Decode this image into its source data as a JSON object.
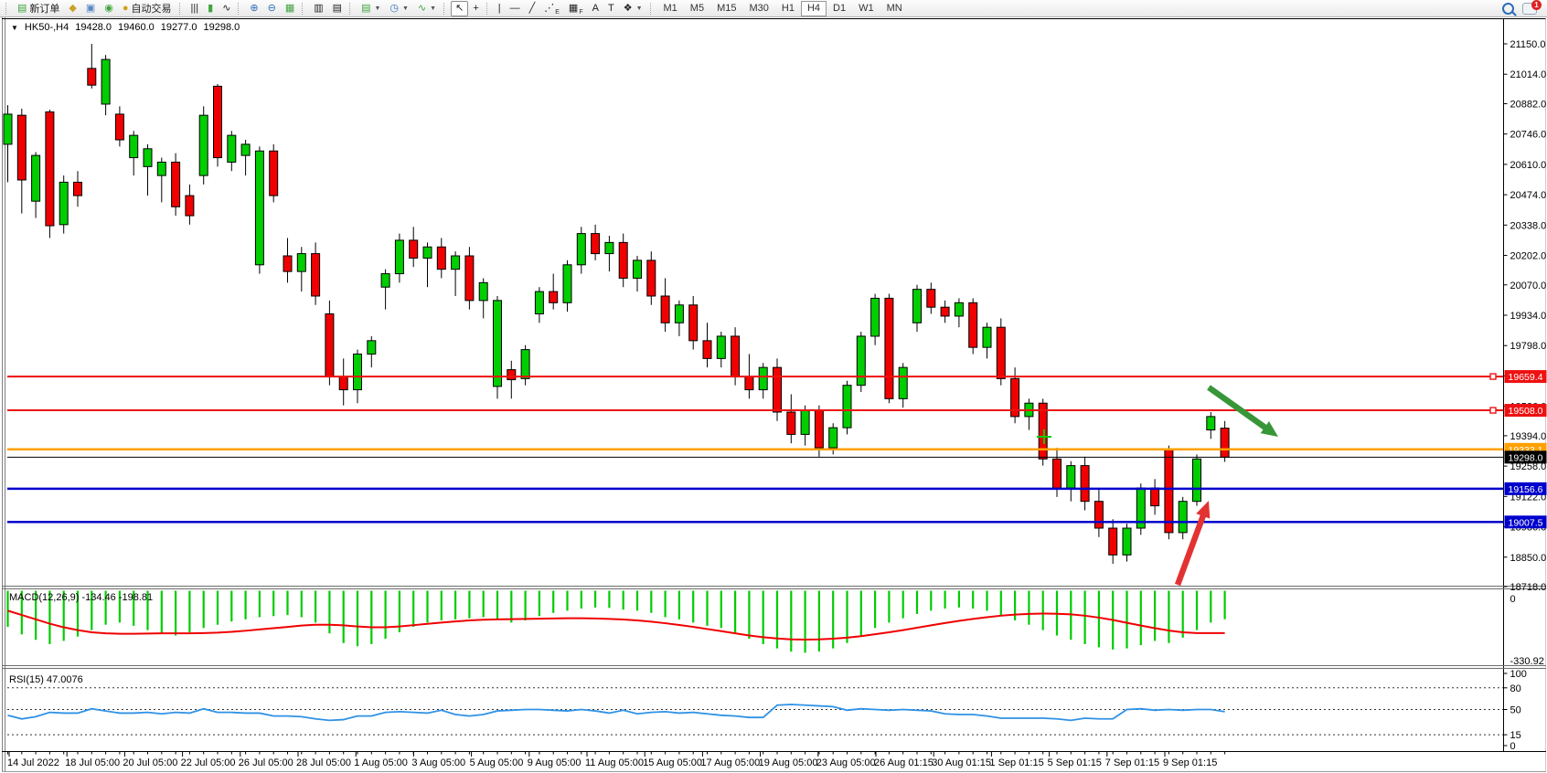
{
  "toolbar": {
    "groups": [
      {
        "items": [
          {
            "name": "new-order-button",
            "glyph": "▤",
            "glyph_color": "#3fa43f",
            "label": "新订单"
          },
          {
            "name": "market-watch-button",
            "glyph": "◆",
            "glyph_color": "#c9a227"
          },
          {
            "name": "data-window-button",
            "glyph": "▣",
            "glyph_color": "#5b87c5"
          },
          {
            "name": "signals-button",
            "glyph": "◉",
            "glyph_color": "#3fa43f"
          },
          {
            "name": "autotrading-button",
            "glyph": "●",
            "glyph_color": "#d4a017",
            "label": "自动交易"
          }
        ]
      },
      {
        "items": [
          {
            "name": "bar-chart-button",
            "glyph": "|||"
          },
          {
            "name": "candlestick-chart-button",
            "glyph": "▮",
            "glyph_color": "#3fa43f"
          },
          {
            "name": "line-chart-button",
            "glyph": "∿"
          }
        ]
      },
      {
        "items": [
          {
            "name": "zoom-in-button",
            "glyph": "⊕",
            "glyph_color": "#2b6cb8"
          },
          {
            "name": "zoom-out-button",
            "glyph": "⊖",
            "glyph_color": "#2b6cb8"
          },
          {
            "name": "tile-windows-button",
            "glyph": "▦",
            "glyph_color": "#3fa43f"
          }
        ]
      },
      {
        "items": [
          {
            "name": "auto-arrange-button",
            "glyph": "▥"
          },
          {
            "name": "track-chart-button",
            "glyph": "▤"
          }
        ]
      },
      {
        "items": [
          {
            "name": "new-chart-dropdown",
            "glyph": "▤",
            "glyph_color": "#3fa43f",
            "dropdown": true
          },
          {
            "name": "periods-dropdown",
            "glyph": "◷",
            "glyph_color": "#2b6cb8",
            "dropdown": true
          },
          {
            "name": "indicators-dropdown",
            "glyph": "∿",
            "glyph_color": "#3fa43f",
            "dropdown": true
          }
        ]
      },
      {
        "items": [
          {
            "name": "cursor-button",
            "glyph": "↖",
            "pressed": true
          },
          {
            "name": "crosshair-button",
            "glyph": "+"
          }
        ]
      },
      {
        "items": [
          {
            "name": "vertical-line-button",
            "glyph": "|"
          },
          {
            "name": "horizontal-line-button",
            "glyph": "—"
          },
          {
            "name": "trendline-button",
            "glyph": "╱"
          },
          {
            "name": "fibonacci-button",
            "glyph": "⋰",
            "sub": "E"
          },
          {
            "name": "grid-button",
            "glyph": "▦",
            "sub": "F"
          },
          {
            "name": "text-button",
            "glyph": "A"
          },
          {
            "name": "text-label-button",
            "glyph": "T"
          },
          {
            "name": "shapes-dropdown",
            "glyph": "❖",
            "dropdown": true
          }
        ]
      }
    ],
    "timeframes": {
      "items": [
        "M1",
        "M5",
        "M15",
        "M30",
        "H1",
        "H4",
        "D1",
        "W1",
        "MN"
      ],
      "active": "H4"
    },
    "right": {
      "badge": "1"
    }
  },
  "chart_header": {
    "dropdown_glyph": "▼",
    "symbol_period": "HK50-,H4",
    "open": "19428.0",
    "high": "19460.0",
    "low": "19277.0",
    "close": "19298.0"
  },
  "colors": {
    "bull": "#00ce00",
    "bear": "#f00000",
    "candle_border": "#000000",
    "macd_histogram": "#00cc00",
    "macd_signal": "#f00000",
    "rsi_line": "#2f92e5",
    "line_red": "#ee1111",
    "line_orange": "#ffa000",
    "line_blue": "#0000cc",
    "line_black": "#000000"
  },
  "chart_data": {
    "type": "candlestick",
    "symbol": "HK50-",
    "timeframe": "H4",
    "current_bar": {
      "open": 19428.0,
      "high": 19460.0,
      "low": 19277.0,
      "close": 19298.0
    },
    "y_ticks": [
      21150.0,
      21014.0,
      20882.0,
      20746.0,
      20610.0,
      20474.0,
      20338.0,
      20202.0,
      20070.0,
      19934.0,
      19798.0,
      19662.0,
      19526.0,
      19394.0,
      19258.0,
      19122.0,
      18986.0,
      18850.0,
      18718.0
    ],
    "x_labels": [
      "14 Jul 2022",
      "18 Jul 05:00",
      "20 Jul 05:00",
      "22 Jul 05:00",
      "26 Jul 05:00",
      "28 Jul 05:00",
      "1 Aug 05:00",
      "3 Aug 05:00",
      "5 Aug 05:00",
      "9 Aug 05:00",
      "11 Aug 05:00",
      "15 Aug 05:00",
      "17 Aug 05:00",
      "19 Aug 05:00",
      "23 Aug 05:00",
      "26 Aug 01:15",
      "30 Aug 01:15",
      "1 Sep 01:15",
      "5 Sep 01:15",
      "7 Sep 01:15",
      "9 Sep 01:15"
    ],
    "horizontal_lines": [
      {
        "price": 19659.4,
        "label": "19659.4",
        "color": "#ee1111",
        "width": 2,
        "marker": true
      },
      {
        "price": 19508.0,
        "label": "19508.0",
        "color": "#ee1111",
        "width": 2,
        "marker": true
      },
      {
        "price": 19333.1,
        "label": "19333.1",
        "color": "#ffa000",
        "width": 2.5,
        "marker": false
      },
      {
        "price": 19298.0,
        "label": "19298.0",
        "color": "#000000",
        "width": 1,
        "marker": false
      },
      {
        "price": 19156.6,
        "label": "19156.6",
        "color": "#0000cc",
        "width": 2.5,
        "marker": false
      },
      {
        "price": 19007.5,
        "label": "19007.5",
        "color": "#0000cc",
        "width": 2.5,
        "marker": false
      }
    ],
    "candles": [
      [
        20700,
        20875,
        20530,
        20835
      ],
      [
        20830,
        20860,
        20390,
        20540
      ],
      [
        20445,
        20665,
        20370,
        20650
      ],
      [
        20845,
        20855,
        20280,
        20335
      ],
      [
        20340,
        20560,
        20300,
        20530
      ],
      [
        20530,
        20580,
        20420,
        20470
      ],
      [
        21040,
        21150,
        20950,
        20965
      ],
      [
        20880,
        21100,
        20830,
        21080
      ],
      [
        20835,
        20870,
        20690,
        20720
      ],
      [
        20640,
        20760,
        20560,
        20740
      ],
      [
        20600,
        20700,
        20470,
        20680
      ],
      [
        20560,
        20640,
        20440,
        20620
      ],
      [
        20620,
        20660,
        20380,
        20420
      ],
      [
        20470,
        20520,
        20340,
        20380
      ],
      [
        20560,
        20870,
        20520,
        20830
      ],
      [
        20960,
        20970,
        20600,
        20640
      ],
      [
        20620,
        20760,
        20580,
        20740
      ],
      [
        20650,
        20720,
        20560,
        20700
      ],
      [
        20160,
        20690,
        20120,
        20670
      ],
      [
        20670,
        20700,
        20440,
        20470
      ],
      [
        20200,
        20280,
        20080,
        20130
      ],
      [
        20130,
        20240,
        20040,
        20210
      ],
      [
        20210,
        20260,
        19980,
        20020
      ],
      [
        19940,
        20000,
        19620,
        19660
      ],
      [
        19660,
        19740,
        19530,
        19600
      ],
      [
        19600,
        19780,
        19540,
        19760
      ],
      [
        19760,
        19840,
        19700,
        19820
      ],
      [
        20060,
        20140,
        19960,
        20120
      ],
      [
        20120,
        20300,
        20080,
        20270
      ],
      [
        20270,
        20330,
        20150,
        20190
      ],
      [
        20190,
        20260,
        20060,
        20240
      ],
      [
        20240,
        20280,
        20100,
        20140
      ],
      [
        20140,
        20220,
        20020,
        20200
      ],
      [
        20200,
        20240,
        19960,
        20000
      ],
      [
        20000,
        20100,
        19920,
        20080
      ],
      [
        19615,
        20020,
        19560,
        20000
      ],
      [
        19690,
        19730,
        19560,
        19645
      ],
      [
        19650,
        19800,
        19620,
        19780
      ],
      [
        19940,
        20060,
        19900,
        20040
      ],
      [
        20040,
        20120,
        19960,
        19990
      ],
      [
        19990,
        20180,
        19950,
        20160
      ],
      [
        20160,
        20330,
        20120,
        20300
      ],
      [
        20300,
        20340,
        20180,
        20210
      ],
      [
        20210,
        20290,
        20130,
        20260
      ],
      [
        20260,
        20300,
        20060,
        20100
      ],
      [
        20100,
        20200,
        20040,
        20180
      ],
      [
        20180,
        20220,
        19980,
        20020
      ],
      [
        20020,
        20100,
        19860,
        19900
      ],
      [
        19900,
        20000,
        19840,
        19980
      ],
      [
        19980,
        20020,
        19780,
        19820
      ],
      [
        19820,
        19900,
        19700,
        19740
      ],
      [
        19740,
        19860,
        19700,
        19840
      ],
      [
        19840,
        19880,
        19620,
        19660
      ],
      [
        19660,
        19760,
        19560,
        19600
      ],
      [
        19600,
        19720,
        19560,
        19700
      ],
      [
        19700,
        19740,
        19460,
        19500
      ],
      [
        19500,
        19580,
        19360,
        19400
      ],
      [
        19400,
        19530,
        19350,
        19510
      ],
      [
        19510,
        19530,
        19300,
        19340
      ],
      [
        19340,
        19450,
        19310,
        19430
      ],
      [
        19430,
        19640,
        19400,
        19620
      ],
      [
        19620,
        19860,
        19590,
        19840
      ],
      [
        19840,
        20030,
        19800,
        20010
      ],
      [
        20010,
        20030,
        19540,
        19560
      ],
      [
        19560,
        19720,
        19520,
        19700
      ],
      [
        19900,
        20070,
        19860,
        20050
      ],
      [
        20050,
        20080,
        19940,
        19970
      ],
      [
        19970,
        20000,
        19900,
        19930
      ],
      [
        19930,
        20010,
        19880,
        19990
      ],
      [
        19990,
        20010,
        19760,
        19790
      ],
      [
        19790,
        19900,
        19740,
        19880
      ],
      [
        19880,
        19920,
        19620,
        19650
      ],
      [
        19650,
        19700,
        19450,
        19480
      ],
      [
        19480,
        19560,
        19420,
        19540
      ],
      [
        19540,
        19560,
        19260,
        19290
      ],
      [
        19290,
        19340,
        19120,
        19160
      ],
      [
        19160,
        19280,
        19100,
        19260
      ],
      [
        19260,
        19300,
        19060,
        19100
      ],
      [
        19100,
        19160,
        18940,
        18980
      ],
      [
        18980,
        19020,
        18820,
        18860
      ],
      [
        18860,
        19000,
        18830,
        18980
      ],
      [
        18980,
        19180,
        18950,
        19160
      ],
      [
        19160,
        19200,
        19040,
        19080
      ],
      [
        19330,
        19350,
        18930,
        18960
      ],
      [
        18960,
        19120,
        18930,
        19100
      ],
      [
        19100,
        19310,
        19080,
        19290
      ],
      [
        19420,
        19500,
        19380,
        19480
      ],
      [
        19428,
        19460,
        19277,
        19298
      ]
    ],
    "indicators": {
      "macd": {
        "title": "MACD(12,26,9)",
        "value_main": "-134.46",
        "value_signal": "-198.81",
        "axis_top": "0",
        "axis_bottom": "-330.92",
        "scale_min": -330.92,
        "histogram": [
          -170,
          -205,
          -230,
          -250,
          -235,
          -215,
          -185,
          -160,
          -150,
          -165,
          -185,
          -200,
          -210,
          -195,
          -175,
          -160,
          -145,
          -135,
          -125,
          -120,
          -115,
          -125,
          -150,
          -200,
          -245,
          -260,
          -250,
          -225,
          -195,
          -170,
          -150,
          -140,
          -135,
          -130,
          -125,
          -135,
          -150,
          -140,
          -120,
          -105,
          -95,
          -85,
          -80,
          -82,
          -90,
          -95,
          -105,
          -125,
          -135,
          -150,
          -165,
          -175,
          -200,
          -225,
          -250,
          -270,
          -285,
          -290,
          -285,
          -270,
          -245,
          -210,
          -175,
          -150,
          -130,
          -110,
          -95,
          -85,
          -80,
          -85,
          -95,
          -115,
          -140,
          -160,
          -185,
          -210,
          -230,
          -250,
          -265,
          -275,
          -270,
          -255,
          -235,
          -245,
          -220,
          -185,
          -150,
          -134.46
        ],
        "signal": [
          -95,
          -115,
          -135,
          -155,
          -172,
          -185,
          -195,
          -200,
          -202,
          -202,
          -201,
          -200,
          -200,
          -200,
          -199,
          -197,
          -193,
          -188,
          -182,
          -176,
          -170,
          -164,
          -160,
          -160,
          -163,
          -168,
          -172,
          -172,
          -168,
          -162,
          -156,
          -150,
          -145,
          -140,
          -137,
          -135,
          -134,
          -133,
          -132,
          -131,
          -130,
          -130,
          -131,
          -133,
          -136,
          -140,
          -146,
          -153,
          -161,
          -170,
          -180,
          -190,
          -200,
          -210,
          -218,
          -224,
          -228,
          -229,
          -228,
          -225,
          -220,
          -213,
          -204,
          -195,
          -185,
          -174,
          -163,
          -152,
          -142,
          -133,
          -125,
          -118,
          -113,
          -110,
          -108,
          -109,
          -112,
          -118,
          -127,
          -138,
          -151,
          -164,
          -176,
          -187,
          -195,
          -199,
          -199,
          -198.81
        ]
      },
      "rsi": {
        "title": "RSI(15)",
        "value": "47.0076",
        "axis_labels": [
          "100",
          "80",
          "50",
          "15",
          "0"
        ],
        "dashed_levels": [
          80,
          50,
          15
        ],
        "values": [
          42,
          37,
          40,
          46,
          45,
          45,
          51,
          48,
          45,
          45,
          46,
          44,
          46,
          45,
          51,
          46,
          46,
          45,
          45,
          41,
          41,
          40,
          37,
          35,
          36,
          41,
          41,
          46,
          47,
          46,
          45,
          49,
          43,
          41,
          43,
          48,
          49,
          50,
          50,
          49,
          48,
          50,
          48,
          45,
          49,
          44,
          46,
          47,
          45,
          46,
          44,
          42,
          41,
          39,
          39,
          56,
          57,
          56,
          55,
          54,
          49,
          51,
          50,
          49,
          50,
          49,
          48,
          44,
          43,
          43,
          41,
          38,
          38,
          38,
          38,
          37,
          35,
          38,
          37,
          37,
          50,
          51,
          49,
          50,
          49,
          50,
          50,
          47
        ]
      }
    },
    "annotations": {
      "green_arrow": {
        "from": [
          1322,
          424
        ],
        "to": [
          1398,
          478
        ],
        "color": "#379637"
      },
      "red_arrow": {
        "from": [
          1288,
          640
        ],
        "to": [
          1322,
          548
        ],
        "color": "#e23232"
      },
      "plus_marker": {
        "x": 1142,
        "y": 478,
        "color": "#00cc00"
      }
    }
  }
}
